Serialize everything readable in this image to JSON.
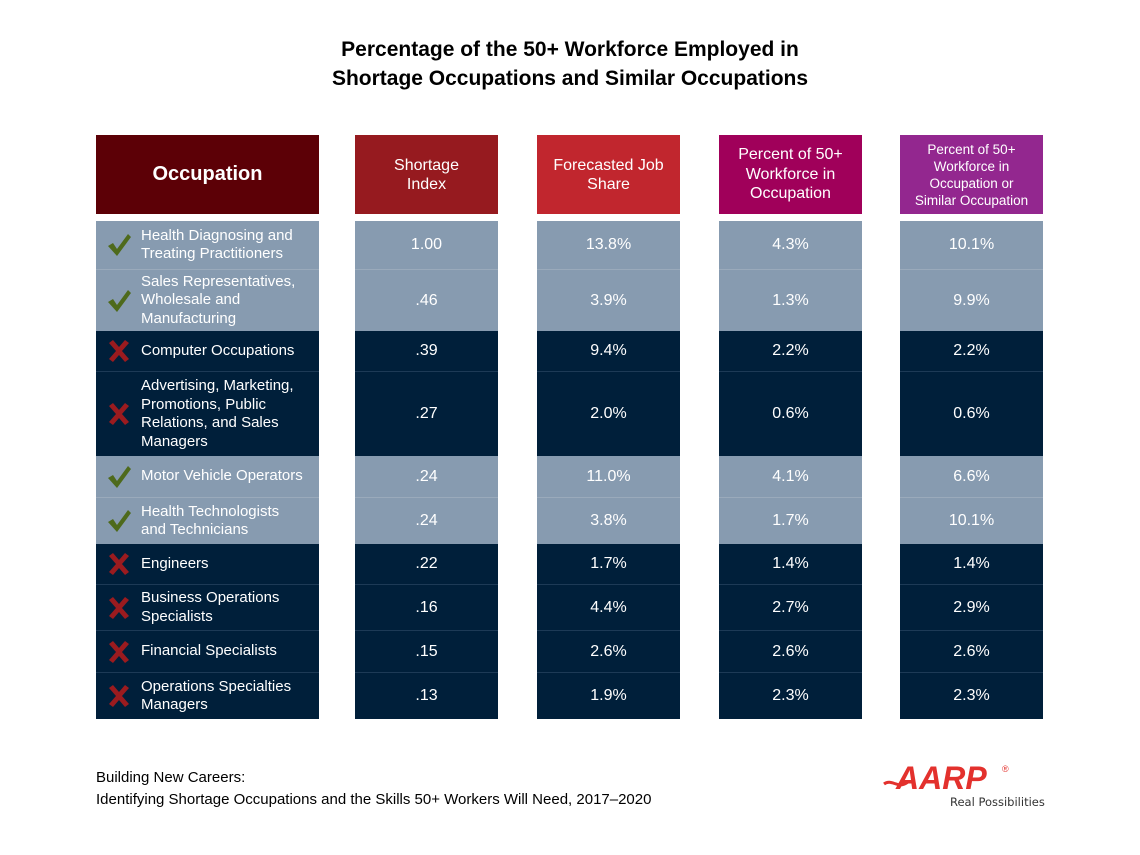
{
  "title": {
    "line1": "Percentage of the 50+ Workforce Employed in",
    "line2": "Shortage Occupations and Similar Occupations"
  },
  "colors": {
    "header_occupation": "#5c0006",
    "header_shortage": "#961a1f",
    "header_forecast": "#c1262e",
    "header_pct": "#a0005a",
    "header_pct_similar": "#93278f",
    "row_shortage": "#879bb0",
    "row_non_shortage": "#001f3a",
    "check": "#4e6a1c",
    "cross": "#9b1b1f",
    "brand": "#e3312d"
  },
  "headers": {
    "occupation": "Occupation",
    "shortage_index": [
      "Shortage",
      "Index"
    ],
    "forecast": [
      "Forecasted Job",
      "Share"
    ],
    "pct": [
      "Percent of 50+",
      "Workforce in",
      "Occupation"
    ],
    "pct_similar": [
      "Percent of 50+",
      "Workforce in",
      "Occupation or",
      "Similar Occupation"
    ]
  },
  "chart_data": {
    "type": "table",
    "title": "Percentage of the 50+ Workforce Employed in Shortage Occupations and Similar Occupations",
    "columns": [
      "Occupation",
      "Shortage Index",
      "Forecasted Job Share",
      "Percent of 50+ Workforce in Occupation",
      "Percent of 50+ Workforce in Occupation or Similar Occupation"
    ],
    "rows": [
      {
        "mark": "check",
        "occupation": [
          "Health Diagnosing and",
          "Treating Practitioners"
        ],
        "shortage_index": "1.00",
        "forecast": "13.8%",
        "pct": "4.3%",
        "pct_similar": "10.1%"
      },
      {
        "mark": "check",
        "occupation": [
          "Sales Representatives,",
          "Wholesale and",
          "Manufacturing"
        ],
        "shortage_index": ".46",
        "forecast": "3.9%",
        "pct": "1.3%",
        "pct_similar": "9.9%"
      },
      {
        "mark": "cross",
        "occupation": [
          "Computer Occupations"
        ],
        "shortage_index": ".39",
        "forecast": "9.4%",
        "pct": "2.2%",
        "pct_similar": "2.2%"
      },
      {
        "mark": "cross",
        "occupation": [
          "Advertising, Marketing,",
          "Promotions, Public",
          "Relations, and Sales",
          "Managers"
        ],
        "shortage_index": ".27",
        "forecast": "2.0%",
        "pct": "0.6%",
        "pct_similar": "0.6%"
      },
      {
        "mark": "check",
        "occupation": [
          "Motor Vehicle Operators"
        ],
        "shortage_index": ".24",
        "forecast": "11.0%",
        "pct": "4.1%",
        "pct_similar": "6.6%"
      },
      {
        "mark": "check",
        "occupation": [
          "Health Technologists",
          "and Technicians"
        ],
        "shortage_index": ".24",
        "forecast": "3.8%",
        "pct": "1.7%",
        "pct_similar": "10.1%"
      },
      {
        "mark": "cross",
        "occupation": [
          "Engineers"
        ],
        "shortage_index": ".22",
        "forecast": "1.7%",
        "pct": "1.4%",
        "pct_similar": "1.4%"
      },
      {
        "mark": "cross",
        "occupation": [
          "Business Operations",
          "Specialists"
        ],
        "shortage_index": ".16",
        "forecast": "4.4%",
        "pct": "2.7%",
        "pct_similar": "2.9%"
      },
      {
        "mark": "cross",
        "occupation": [
          "Financial Specialists"
        ],
        "shortage_index": ".15",
        "forecast": "2.6%",
        "pct": "2.6%",
        "pct_similar": "2.6%"
      },
      {
        "mark": "cross",
        "occupation": [
          "Operations Specialties",
          "Managers"
        ],
        "shortage_index": ".13",
        "forecast": "1.9%",
        "pct": "2.3%",
        "pct_similar": "2.3%"
      }
    ]
  },
  "footer": {
    "line1": "Building New Careers:",
    "line2": "Identifying Shortage Occupations and the Skills 50+ Workers Will Need, 2017–2020"
  },
  "logo": {
    "brand": "AARP",
    "registered": "®",
    "tagline": "Real Possibilities"
  }
}
